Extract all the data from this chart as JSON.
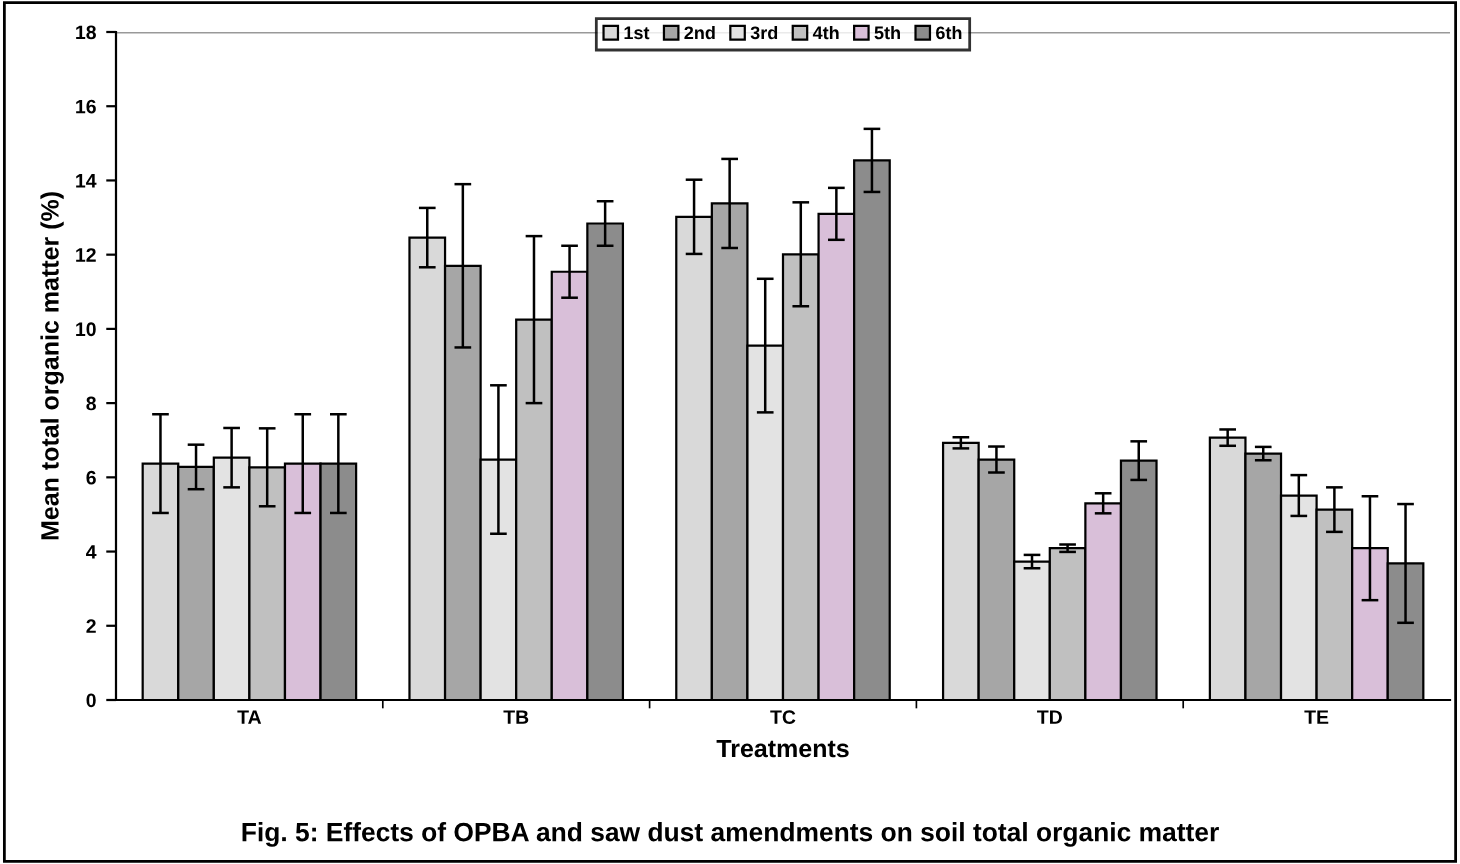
{
  "chart_data": {
    "type": "bar",
    "title": "Fig. 5: Effects of OPBA and saw dust amendments on soil total organic matter",
    "xlabel": "Treatments",
    "ylabel": "Mean total organic matter (%)",
    "categories": [
      "TA",
      "TB",
      "TC",
      "TD",
      "TE"
    ],
    "series": [
      {
        "name": "1st",
        "color": "#d9d9d9",
        "values": [
          6.37,
          12.46,
          13.02,
          6.93,
          7.07
        ],
        "errors": [
          1.33,
          0.8,
          1.0,
          0.15,
          0.22
        ]
      },
      {
        "name": "2nd",
        "color": "#a6a6a6",
        "values": [
          6.28,
          11.7,
          13.38,
          6.48,
          6.64
        ],
        "errors": [
          0.6,
          2.2,
          1.2,
          0.35,
          0.18
        ]
      },
      {
        "name": "3rd",
        "color": "#e3e3e3",
        "values": [
          6.53,
          6.48,
          9.55,
          3.73,
          5.51
        ],
        "errors": [
          0.8,
          2.0,
          1.8,
          0.18,
          0.55
        ]
      },
      {
        "name": "4th",
        "color": "#c0c0c0",
        "values": [
          6.27,
          10.25,
          12.01,
          4.09,
          5.13
        ],
        "errors": [
          1.05,
          2.25,
          1.4,
          0.1,
          0.6
        ]
      },
      {
        "name": "5th",
        "color": "#d9bfd9",
        "values": [
          6.37,
          11.54,
          13.1,
          5.3,
          4.09
        ],
        "errors": [
          1.33,
          0.7,
          0.7,
          0.27,
          1.4
        ]
      },
      {
        "name": "6th",
        "color": "#8c8c8c",
        "values": [
          6.37,
          12.84,
          14.54,
          6.45,
          3.68
        ],
        "errors": [
          1.33,
          0.6,
          0.85,
          0.52,
          1.6
        ]
      }
    ],
    "ylim": [
      0,
      18
    ],
    "yticks": [
      0,
      2,
      4,
      6,
      8,
      10,
      12,
      14,
      16,
      18
    ],
    "legend": "top",
    "grid": false
  }
}
